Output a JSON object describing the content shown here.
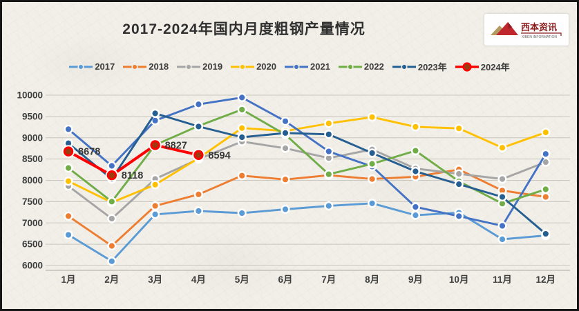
{
  "title": "2017-2024年国内月度粗钢产量情况",
  "logo": {
    "cn": "西本资讯",
    "en": "XIBEN INFORMATION"
  },
  "chart_data": {
    "type": "line",
    "title": "2017-2024年国内月度粗钢产量情况",
    "xlabel": "",
    "ylabel": "",
    "categories": [
      "1月",
      "2月",
      "3月",
      "4月",
      "5月",
      "6月",
      "7月",
      "8月",
      "9月",
      "10月",
      "11月",
      "12月"
    ],
    "y_axis": {
      "min": 6000,
      "max": 10000,
      "step": 500
    },
    "grid": true,
    "legend_position": "top",
    "series": [
      {
        "name": "2017",
        "color": "#5B9BD5",
        "values": [
          6720,
          6100,
          7200,
          7280,
          7230,
          7320,
          7400,
          7460,
          7180,
          7240,
          6615,
          6705
        ]
      },
      {
        "name": "2018",
        "color": "#ED7D31",
        "values": [
          7160,
          6460,
          7400,
          7670,
          8110,
          8020,
          8120,
          8030,
          8085,
          8255,
          7760,
          7610
        ]
      },
      {
        "name": "2019",
        "color": "#A5A5A5",
        "values": [
          7865,
          7100,
          8033,
          8500,
          8910,
          8753,
          8522,
          8725,
          8277,
          8152,
          8030,
          8427
        ]
      },
      {
        "name": "2020",
        "color": "#FFC000",
        "values": [
          7980,
          7480,
          7898,
          8520,
          9227,
          9158,
          9336,
          9485,
          9256,
          9220,
          8766,
          9125
        ]
      },
      {
        "name": "2021",
        "color": "#4472C4",
        "values": [
          9200,
          8340,
          9402,
          9785,
          9945,
          9388,
          8679,
          8324,
          7375,
          7158,
          6931,
          8619
        ]
      },
      {
        "name": "2022",
        "color": "#70AD47",
        "values": [
          8290,
          7500,
          8830,
          9278,
          9661,
          9073,
          8143,
          8387,
          8695,
          7976,
          7454,
          7789
        ]
      },
      {
        "name": "2023年",
        "color": "#255E91",
        "values": [
          8870,
          8030,
          9573,
          9264,
          9012,
          9111,
          9080,
          8641,
          8211,
          7909,
          7610,
          6744
        ]
      },
      {
        "name": "2024年",
        "color": "#FF0000",
        "marker_color": "#9C3A10",
        "data_labels": true,
        "values": [
          8678,
          8118,
          8827,
          8594,
          null,
          null,
          null,
          null,
          null,
          null,
          null,
          null
        ]
      }
    ]
  }
}
